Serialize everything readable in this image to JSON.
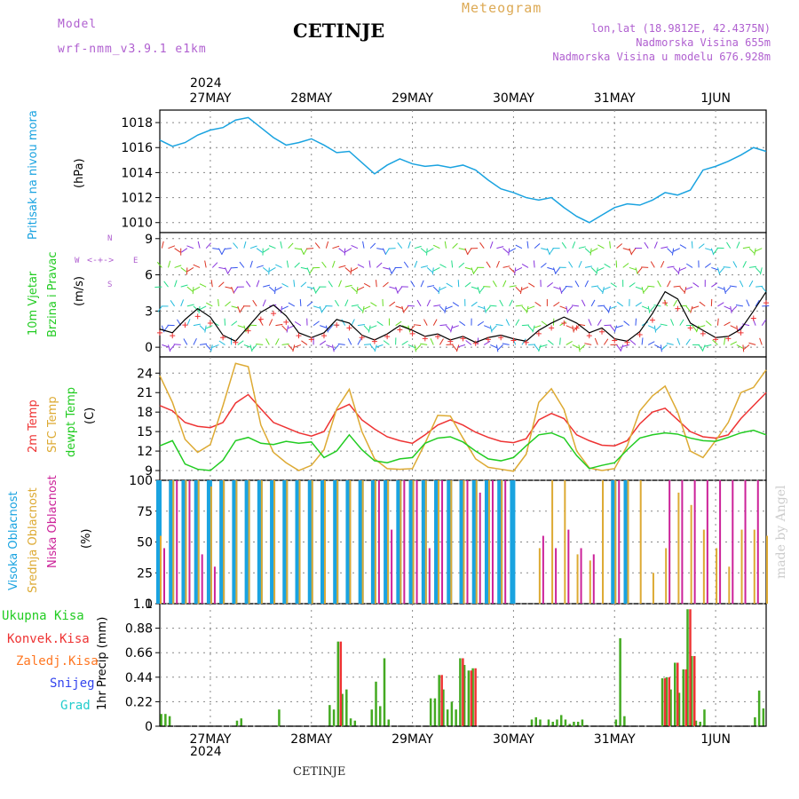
{
  "header": {
    "model_label": "Model",
    "model_name": "wrf-nmm_v3.9.1 e1km",
    "station": "CETINJE",
    "meteogram": "Meteogram",
    "lonlat": "lon,lat (18.9812E, 42.4375N)",
    "altitude": "Nadmorska Visina 655m",
    "model_altitude": "Nadmorska Visina u modelu 676.928m",
    "footer_station": "CETINJE",
    "watermark": "made by Angel",
    "year": "2024"
  },
  "colors": {
    "pressure": "#1aa3e0",
    "wind": "#22cc22",
    "t2m": "#ee3333",
    "sfc": "#ddaa33",
    "dew": "#22cc22",
    "high_cloud": "#1aa3e0",
    "mid_cloud": "#ddaa33",
    "low_cloud": "#cc2299",
    "total_precip": "#44aa22",
    "conv_precip": "#ee3333",
    "frz": "#ff7722",
    "snow": "#3344ee",
    "hail": "#22cccc"
  },
  "axes": {
    "date_labels": [
      "27MAY",
      "28MAY",
      "29MAY",
      "30MAY",
      "31MAY",
      "1JUN"
    ],
    "date_hours": [
      12,
      36,
      60,
      84,
      108,
      132
    ],
    "x_range_hours": [
      0,
      144
    ]
  },
  "panel_labels": {
    "pressure": [
      "Pritisak na nivou mora",
      "(hPa)"
    ],
    "wind": [
      "10m Vjetar",
      "Brzina i Pravac",
      "(m/s)"
    ],
    "compass": [
      "N",
      "S",
      "W",
      "E"
    ],
    "temp": [
      "2m Temp",
      "SFC Temp",
      "dewpt Temp",
      "(C)"
    ],
    "cloud": [
      "Visoka Oblacnost",
      "Srednja Oblacnost",
      "Niska Oblacnost",
      "(%)"
    ],
    "precip_unit": "1hr Precip (mm)",
    "precip_legend": [
      "Ukupna Kisa",
      "Konvek.Kisa",
      "Zaledj.Kisa",
      "Snijeg",
      "Grad"
    ]
  },
  "chart_data": [
    {
      "type": "line",
      "panel": "pressure",
      "ylabel": "(hPa)",
      "ylim": [
        1009.2,
        1019.0
      ],
      "yticks": [
        1010,
        1012,
        1014,
        1016,
        1018
      ],
      "x_hours": [
        0,
        3,
        6,
        9,
        12,
        15,
        18,
        21,
        24,
        27,
        30,
        33,
        36,
        39,
        42,
        45,
        48,
        51,
        54,
        57,
        60,
        63,
        66,
        69,
        72,
        75,
        78,
        81,
        84,
        87,
        90,
        93,
        96,
        99,
        102,
        105,
        108,
        111,
        114,
        117,
        120,
        123,
        126,
        129,
        132,
        135,
        138,
        141,
        144
      ],
      "values": [
        1016.6,
        1016.1,
        1016.4,
        1017.0,
        1017.4,
        1017.6,
        1018.2,
        1018.4,
        1017.6,
        1016.8,
        1016.2,
        1016.4,
        1016.7,
        1016.2,
        1015.6,
        1015.7,
        1014.8,
        1013.9,
        1014.6,
        1015.1,
        1014.7,
        1014.5,
        1014.6,
        1014.4,
        1014.6,
        1014.2,
        1013.4,
        1012.7,
        1012.4,
        1012.0,
        1011.8,
        1012.0,
        1011.2,
        1010.5,
        1010.0,
        1010.6,
        1011.2,
        1011.5,
        1011.4,
        1011.8,
        1012.4,
        1012.2,
        1012.6,
        1014.2,
        1014.5,
        1014.9,
        1015.4,
        1016.0,
        1015.7
      ]
    },
    {
      "type": "line",
      "panel": "wind",
      "ylabel": "(m/s)",
      "ylim": [
        -0.8,
        9.5
      ],
      "yticks": [
        0,
        3,
        6,
        9
      ],
      "x_hours": [
        0,
        3,
        6,
        9,
        12,
        15,
        18,
        21,
        24,
        27,
        30,
        33,
        36,
        39,
        42,
        45,
        48,
        51,
        54,
        57,
        60,
        63,
        66,
        69,
        72,
        75,
        78,
        81,
        84,
        87,
        90,
        93,
        96,
        99,
        102,
        105,
        108,
        111,
        114,
        117,
        120,
        123,
        126,
        129,
        132,
        135,
        138,
        141,
        144
      ],
      "values": [
        1.5,
        1.2,
        2.3,
        3.2,
        2.5,
        1.0,
        0.5,
        1.7,
        2.9,
        3.5,
        2.6,
        1.2,
        0.8,
        1.2,
        2.3,
        2.0,
        1.0,
        0.6,
        1.1,
        1.8,
        1.4,
        0.9,
        1.1,
        0.6,
        0.9,
        0.4,
        0.8,
        1.0,
        0.7,
        0.5,
        1.4,
        2.0,
        2.5,
        2.0,
        1.2,
        1.6,
        0.7,
        0.5,
        1.3,
        2.8,
        4.6,
        4.0,
        2.0,
        1.4,
        0.8,
        0.9,
        1.5,
        3.0,
        4.6
      ]
    },
    {
      "type": "line",
      "panel": "temperature",
      "ylabel": "(C)",
      "ylim": [
        7.5,
        26.5
      ],
      "yticks": [
        9,
        12,
        15,
        18,
        21,
        24
      ],
      "x_hours": [
        0,
        3,
        6,
        9,
        12,
        15,
        18,
        21,
        24,
        27,
        30,
        33,
        36,
        39,
        42,
        45,
        48,
        51,
        54,
        57,
        60,
        63,
        66,
        69,
        72,
        75,
        78,
        81,
        84,
        87,
        90,
        93,
        96,
        99,
        102,
        105,
        108,
        111,
        114,
        117,
        120,
        123,
        126,
        129,
        132,
        135,
        138,
        141,
        144
      ],
      "series": [
        {
          "name": "2m Temp",
          "color": "#ee3333",
          "values": [
            19.0,
            18.2,
            16.4,
            15.8,
            15.6,
            16.4,
            19.4,
            20.7,
            18.5,
            16.4,
            15.6,
            14.8,
            14.3,
            15.0,
            18.3,
            19.2,
            16.8,
            15.4,
            14.2,
            13.6,
            13.2,
            14.5,
            16.0,
            16.8,
            16.0,
            14.9,
            14.1,
            13.5,
            13.3,
            13.9,
            16.8,
            17.8,
            17.0,
            14.5,
            13.6,
            12.9,
            12.8,
            13.6,
            16.2,
            18.0,
            18.6,
            16.8,
            15.0,
            14.2,
            14.0,
            14.5,
            17.0,
            19.0,
            21.0
          ]
        },
        {
          "name": "SFC Temp",
          "color": "#ddaa33",
          "values": [
            23.6,
            19.5,
            13.8,
            11.8,
            13.0,
            19.0,
            25.5,
            25.0,
            16.0,
            11.8,
            10.2,
            9.0,
            9.8,
            12.2,
            18.5,
            21.5,
            15.0,
            10.8,
            9.3,
            9.2,
            9.3,
            13.2,
            17.5,
            17.4,
            14.0,
            10.8,
            9.5,
            9.2,
            8.9,
            11.5,
            19.5,
            21.6,
            18.4,
            12.0,
            9.4,
            9.0,
            9.3,
            12.8,
            18.2,
            20.5,
            22.0,
            18.0,
            12.0,
            11.0,
            13.6,
            16.4,
            21.0,
            21.8,
            24.5
          ]
        },
        {
          "name": "dewpt Temp",
          "color": "#22cc22",
          "values": [
            12.8,
            13.6,
            10.0,
            9.2,
            9.0,
            10.6,
            13.6,
            14.1,
            13.2,
            13.0,
            13.5,
            13.2,
            13.4,
            11.0,
            12.0,
            14.5,
            12.2,
            10.5,
            10.2,
            10.8,
            11.0,
            13.2,
            14.0,
            14.2,
            13.4,
            12.0,
            10.8,
            10.5,
            11.0,
            12.8,
            14.5,
            14.8,
            14.0,
            11.3,
            9.3,
            9.8,
            10.2,
            12.2,
            14.0,
            14.5,
            14.8,
            14.6,
            14.0,
            13.6,
            13.5,
            14.1,
            14.8,
            15.2,
            14.5
          ]
        }
      ]
    },
    {
      "type": "bar",
      "panel": "cloud",
      "ylabel": "(%)",
      "ylim": [
        0,
        100
      ],
      "yticks": [
        0,
        25,
        50,
        75,
        100
      ],
      "x_hours": [
        0,
        3,
        6,
        9,
        12,
        15,
        18,
        21,
        24,
        27,
        30,
        33,
        36,
        39,
        42,
        45,
        48,
        51,
        54,
        57,
        60,
        63,
        66,
        69,
        72,
        75,
        78,
        81,
        84,
        87,
        90,
        93,
        96,
        99,
        102,
        105,
        108,
        111,
        114,
        117,
        120,
        123,
        126,
        129,
        132,
        135,
        138,
        141,
        144
      ],
      "series": [
        {
          "name": "Visoka Oblacnost",
          "color": "#1aa3e0",
          "values": [
            100,
            100,
            100,
            100,
            100,
            100,
            100,
            100,
            100,
            100,
            100,
            100,
            100,
            100,
            100,
            100,
            100,
            100,
            100,
            100,
            100,
            100,
            100,
            100,
            100,
            100,
            100,
            100,
            100,
            0,
            0,
            0,
            0,
            0,
            0,
            0,
            100,
            100,
            0,
            0,
            0,
            0,
            0,
            0,
            0,
            0,
            0,
            0,
            0
          ]
        },
        {
          "name": "Srednja Oblacnost",
          "color": "#ddaa33",
          "values": [
            55,
            100,
            100,
            100,
            95,
            100,
            100,
            100,
            100,
            100,
            100,
            100,
            100,
            100,
            100,
            100,
            100,
            100,
            100,
            100,
            100,
            100,
            100,
            100,
            100,
            100,
            100,
            100,
            0,
            0,
            45,
            100,
            100,
            40,
            35,
            100,
            100,
            100,
            100,
            25,
            45,
            90,
            80,
            60,
            45,
            30,
            60,
            60,
            55
          ]
        },
        {
          "name": "Niska Oblacnost",
          "color": "#cc2299",
          "values": [
            45,
            100,
            100,
            40,
            30,
            0,
            0,
            0,
            0,
            0,
            0,
            0,
            0,
            0,
            0,
            0,
            0,
            100,
            60,
            100,
            100,
            45,
            100,
            0,
            100,
            90,
            100,
            100,
            0,
            0,
            55,
            45,
            60,
            45,
            40,
            0,
            100,
            0,
            0,
            0,
            100,
            100,
            100,
            100,
            100,
            100,
            100,
            100,
            0
          ]
        }
      ]
    },
    {
      "type": "bar",
      "panel": "precipitation",
      "ylabel": "1hr Precip (mm)",
      "ylim": [
        0,
        1.1
      ],
      "yticks": [
        0,
        0.22,
        0.44,
        0.66,
        0.88,
        1.1
      ],
      "series": [
        {
          "name": "Ukupna Kisa",
          "color": "#44aa22",
          "x_hours": [
            0.5,
            1.5,
            2.5,
            18.5,
            19.5,
            28.5,
            40.5,
            41.5,
            42.5,
            43.5,
            44.5,
            45.5,
            46.5,
            50.5,
            51.5,
            52.5,
            53.5,
            54.5,
            64.5,
            65.5,
            66.5,
            67.5,
            68.5,
            69.5,
            70.5,
            71.5,
            72.5,
            73.5,
            74.5,
            88.5,
            89.5,
            90.5,
            92.5,
            93.5,
            94.5,
            95.5,
            96.5,
            97.5,
            98.5,
            99.5,
            100.5,
            101.5,
            108.5,
            109.5,
            110.5,
            119.5,
            120.5,
            121.5,
            122.5,
            123.5,
            124.5,
            125.5,
            126.5,
            127.5,
            128.5,
            129.5,
            141.5,
            142.5,
            143.5
          ],
          "values": [
            0.11,
            0.11,
            0.09,
            0.05,
            0.07,
            0.15,
            0.19,
            0.15,
            0.76,
            0.29,
            0.33,
            0.07,
            0.05,
            0.15,
            0.4,
            0.18,
            0.61,
            0.06,
            0.25,
            0.25,
            0.46,
            0.33,
            0.15,
            0.22,
            0.15,
            0.61,
            0.55,
            0.5,
            0.52,
            0.06,
            0.08,
            0.06,
            0.06,
            0.04,
            0.06,
            0.1,
            0.06,
            0.02,
            0.04,
            0.04,
            0.06,
            0.01,
            0.06,
            0.79,
            0.09,
            0.43,
            0.44,
            0.33,
            0.57,
            0.3,
            0.51,
            1.05,
            0.63,
            0.05,
            0.04,
            0.15,
            0.08,
            0.32,
            0.16
          ]
        },
        {
          "name": "Konvek.Kisa",
          "color": "#ee3333",
          "x_hours": [
            42.5,
            66.5,
            71.5,
            73.5,
            74.5,
            119.5,
            120.5,
            122.5,
            124.5,
            125.5,
            126.5
          ],
          "values": [
            0.76,
            0.46,
            0.61,
            0.5,
            0.52,
            0.43,
            0.44,
            0.57,
            0.51,
            1.05,
            0.63
          ]
        }
      ]
    }
  ]
}
